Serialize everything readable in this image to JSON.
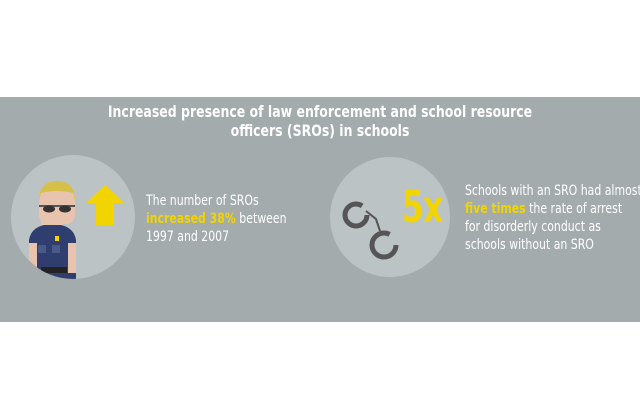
{
  "title": {
    "line1": "Increased presence of law enforcement and school resource",
    "line2": "officers (SROs) in schools"
  },
  "stat_left": {
    "text_before": "The number of SROs",
    "highlight": "increased 38%",
    "text_after": " between",
    "line3": "1997 and 2007",
    "icons": [
      "police-officer-icon",
      "up-arrow-icon"
    ]
  },
  "stat_right": {
    "big_number": "5x",
    "line1": "Schools with an SRO had almost",
    "highlight": "five times",
    "line2_after": " the rate of arrest",
    "line3": "for disorderly conduct as",
    "line4": "schools without an SRO",
    "icons": [
      "handcuffs-icon"
    ]
  },
  "colors": {
    "band": "#a3abad",
    "circle": "#bcc3c5",
    "accent": "#f2d500"
  }
}
